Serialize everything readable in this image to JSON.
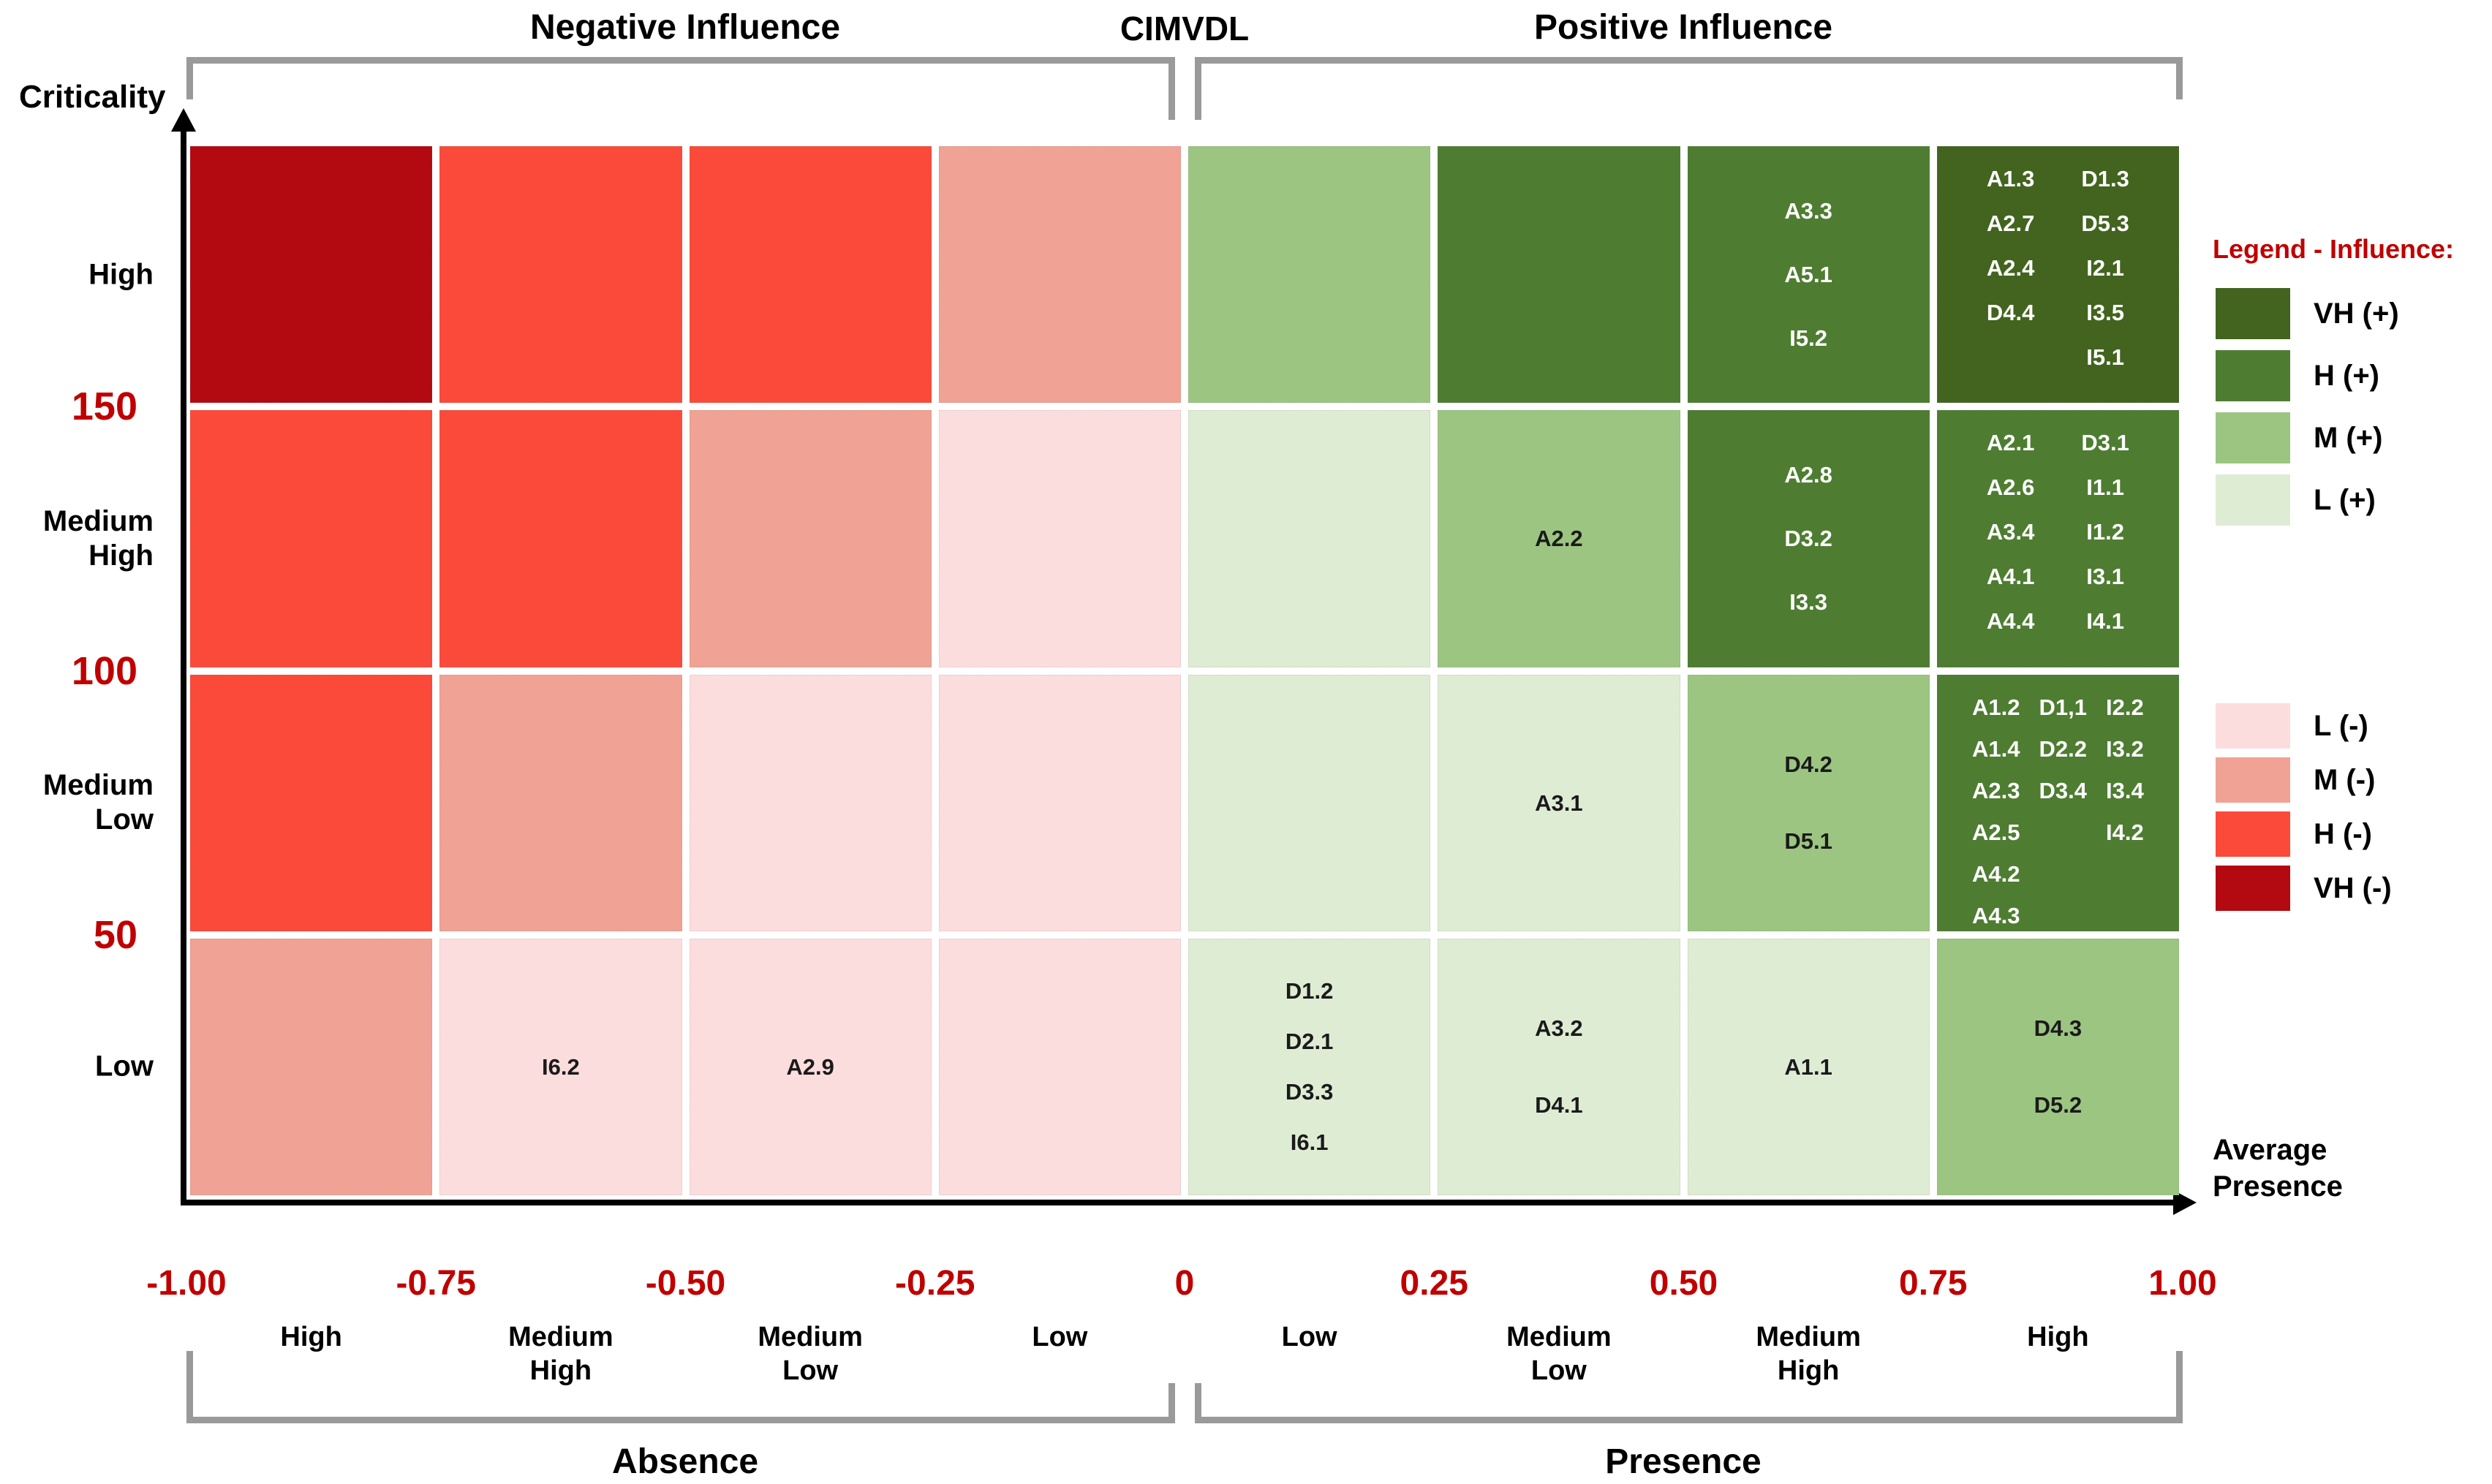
{
  "header": {
    "negative_title": "Negative Influence",
    "center_title": "CIMVDL",
    "positive_title": "Positive Influence"
  },
  "y_axis": {
    "title": "Criticality",
    "tick_values": [
      "150",
      "100",
      "50"
    ],
    "category_labels": [
      "High",
      "Medium High",
      "Medium Low",
      "Low"
    ]
  },
  "x_axis": {
    "title_lines": [
      "Average",
      "Presence"
    ],
    "tick_values": [
      "-1.00",
      "-0.75",
      "-0.50",
      "-0.25",
      "0",
      "0.25",
      "0.50",
      "0.75",
      "1.00"
    ],
    "category_labels": [
      "High",
      "Medium High",
      "Medium Low",
      "Low",
      "Low",
      "Medium Low",
      "Medium High",
      "High"
    ],
    "absence_label": "Absence",
    "presence_label": "Presence"
  },
  "legend": {
    "title": "Legend - Influence:",
    "positive_entries": [
      {
        "label": "VH (+)",
        "level": "VH+"
      },
      {
        "label": "H (+)",
        "level": "H+"
      },
      {
        "label": "M (+)",
        "level": "M+"
      },
      {
        "label": "L (+)",
        "level": "L+"
      }
    ],
    "negative_entries": [
      {
        "label": "L (-)",
        "level": "L-"
      },
      {
        "label": "M (-)",
        "level": "M-"
      },
      {
        "label": "H (-)",
        "level": "H-"
      },
      {
        "label": "VH (-)",
        "level": "VH-"
      }
    ]
  },
  "colors": {
    "VH+": "#42641f",
    "H+": "#4e7d32",
    "M+": "#9cc581",
    "L+": "#deecd4",
    "L-": "#fcdddd",
    "M-": "#f0a295",
    "H-": "#fb4a3a",
    "VH-": "#b20a10",
    "accent_red": "#c00000",
    "brace_gray": "#9a9a9a",
    "dark_cell_text": "#ffffff",
    "light_cell_text": "#1a1a1a"
  },
  "chart_data": {
    "type": "heatmap",
    "title": "CIMVDL",
    "xlabel": "Average Presence",
    "ylabel": "Criticality",
    "x_tick_values": [
      -1.0,
      -0.75,
      -0.5,
      -0.25,
      0,
      0.25,
      0.5,
      0.75,
      1.0
    ],
    "y_tick_values": [
      150,
      100,
      50
    ],
    "x_categories": [
      "Absence High",
      "Absence Medium High",
      "Absence Medium Low",
      "Absence Low",
      "Presence Low",
      "Presence Medium Low",
      "Presence Medium High",
      "Presence High"
    ],
    "y_categories": [
      "High",
      "Medium High",
      "Medium Low",
      "Low"
    ],
    "legend_levels": [
      "VH (+)",
      "H (+)",
      "M (+)",
      "L (+)",
      "L (-)",
      "M (-)",
      "H (-)",
      "VH (-)"
    ],
    "rows": [
      {
        "criticality": "High",
        "cells": [
          {
            "influence": "VH-",
            "item_columns": []
          },
          {
            "influence": "H-",
            "item_columns": []
          },
          {
            "influence": "H-",
            "item_columns": []
          },
          {
            "influence": "M-",
            "item_columns": []
          },
          {
            "influence": "M+",
            "item_columns": []
          },
          {
            "influence": "H+",
            "item_columns": []
          },
          {
            "influence": "H+",
            "item_columns": [
              [
                "A3.3",
                "A5.1",
                "I5.2"
              ]
            ]
          },
          {
            "influence": "VH+",
            "item_columns": [
              [
                "A1.3",
                "A2.7",
                "A2.4",
                "D4.4"
              ],
              [
                "D1.3",
                "D5.3",
                "I2.1",
                "I3.5",
                "I5.1"
              ]
            ]
          }
        ]
      },
      {
        "criticality": "Medium High",
        "cells": [
          {
            "influence": "H-",
            "item_columns": []
          },
          {
            "influence": "H-",
            "item_columns": []
          },
          {
            "influence": "M-",
            "item_columns": []
          },
          {
            "influence": "L-",
            "item_columns": []
          },
          {
            "influence": "L+",
            "item_columns": []
          },
          {
            "influence": "M+",
            "item_columns": [
              [
                "A2.2"
              ]
            ]
          },
          {
            "influence": "H+",
            "item_columns": [
              [
                "A2.8",
                "D3.2",
                "I3.3"
              ]
            ]
          },
          {
            "influence": "H+",
            "item_columns": [
              [
                "A2.1",
                "A2.6",
                "A3.4",
                "A4.1",
                "A4.4"
              ],
              [
                "D3.1",
                "I1.1",
                "I1.2",
                "I3.1",
                "I4.1"
              ]
            ]
          }
        ]
      },
      {
        "criticality": "Medium Low",
        "cells": [
          {
            "influence": "H-",
            "item_columns": []
          },
          {
            "influence": "M-",
            "item_columns": []
          },
          {
            "influence": "L-",
            "item_columns": []
          },
          {
            "influence": "L-",
            "item_columns": []
          },
          {
            "influence": "L+",
            "item_columns": []
          },
          {
            "influence": "L+",
            "item_columns": [
              [
                "A3.1"
              ]
            ]
          },
          {
            "influence": "M+",
            "item_columns": [
              [
                "D4.2",
                "D5.1"
              ]
            ]
          },
          {
            "influence": "H+",
            "item_columns": [
              [
                "A1.2",
                "A1.4",
                "A2.3",
                "A2.5",
                "A4.2",
                "A4.3"
              ],
              [
                "D1,1",
                "D2.2",
                "D3.4"
              ],
              [
                "I2.2",
                "I3.2",
                "I3.4",
                "I4.2"
              ]
            ]
          }
        ]
      },
      {
        "criticality": "Low",
        "cells": [
          {
            "influence": "M-",
            "item_columns": []
          },
          {
            "influence": "L-",
            "item_columns": [
              [
                "I6.2"
              ]
            ]
          },
          {
            "influence": "L-",
            "item_columns": [
              [
                "A2.9"
              ]
            ]
          },
          {
            "influence": "L-",
            "item_columns": []
          },
          {
            "influence": "L+",
            "item_columns": [
              [
                "D1.2",
                "D2.1",
                "D3.3",
                "I6.1"
              ]
            ]
          },
          {
            "influence": "L+",
            "item_columns": [
              [
                "A3.2",
                "D4.1"
              ]
            ]
          },
          {
            "influence": "L+",
            "item_columns": [
              [
                "A1.1"
              ]
            ]
          },
          {
            "influence": "M+",
            "item_columns": [
              [
                "D4.3",
                "D5.2"
              ]
            ]
          }
        ]
      }
    ]
  }
}
